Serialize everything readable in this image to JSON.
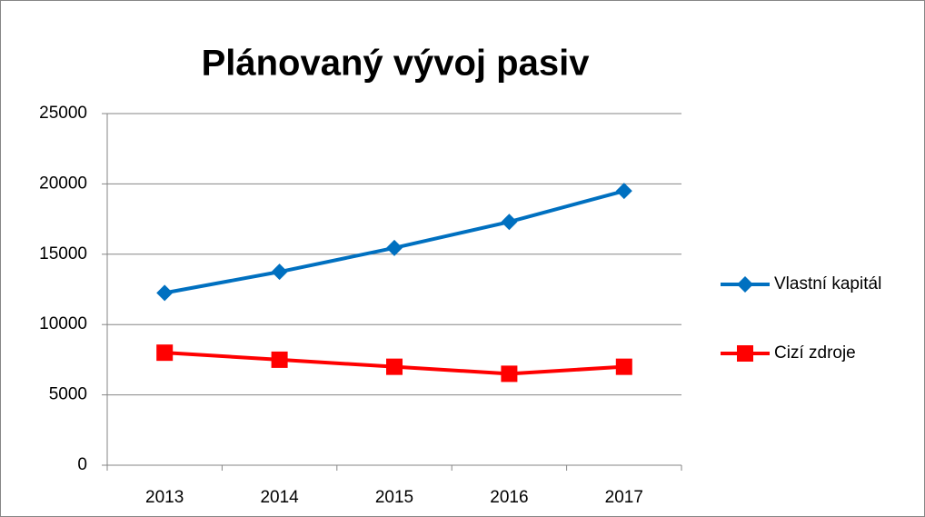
{
  "chart_data": {
    "type": "line",
    "title": "Plánovaný vývoj pasiv",
    "categories": [
      "2013",
      "2014",
      "2015",
      "2016",
      "2017"
    ],
    "series": [
      {
        "name": "Vlastní kapitál",
        "color": "#0070c0",
        "marker": "diamond",
        "values": [
          12250,
          13750,
          15450,
          17300,
          19500
        ]
      },
      {
        "name": "Cizí zdroje",
        "color": "#ff0000",
        "marker": "square",
        "values": [
          8000,
          7500,
          7000,
          6500,
          7000
        ]
      }
    ],
    "ylim": [
      0,
      25000
    ],
    "yticks": [
      0,
      5000,
      10000,
      15000,
      20000,
      25000
    ],
    "grid": true,
    "legend": "right"
  }
}
